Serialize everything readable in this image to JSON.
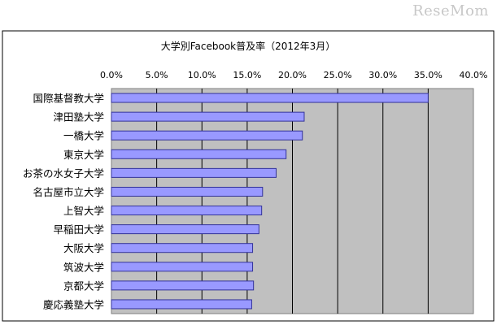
{
  "watermark": "ReseMom",
  "chart_data": {
    "type": "bar",
    "orientation": "horizontal",
    "title": "大学別Facebook普及率（2012年3月）",
    "categories": [
      "国際基督教大学",
      "津田塾大学",
      "一橋大学",
      "東京大学",
      "お茶の水女子大学",
      "名古屋市立大学",
      "上智大学",
      "早稲田大学",
      "大阪大学",
      "筑波大学",
      "京都大学",
      "慶応義塾大学"
    ],
    "values": [
      35.0,
      21.3,
      21.1,
      19.3,
      18.2,
      16.7,
      16.6,
      16.3,
      15.6,
      15.6,
      15.7,
      15.5
    ],
    "xlim": [
      0,
      40
    ],
    "xticks": [
      "0.0%",
      "5.0%",
      "10.0%",
      "15.0%",
      "20.0%",
      "25.0%",
      "30.0%",
      "35.0%",
      "40.0%"
    ],
    "xaxis_position": "top",
    "grid": true,
    "legend": "none",
    "colors": {
      "bar_fill": "#9999ff",
      "bar_stroke": "#333399",
      "plot_background": "#c0c0c0",
      "gridline": "#000000",
      "frame": "#000000"
    }
  }
}
